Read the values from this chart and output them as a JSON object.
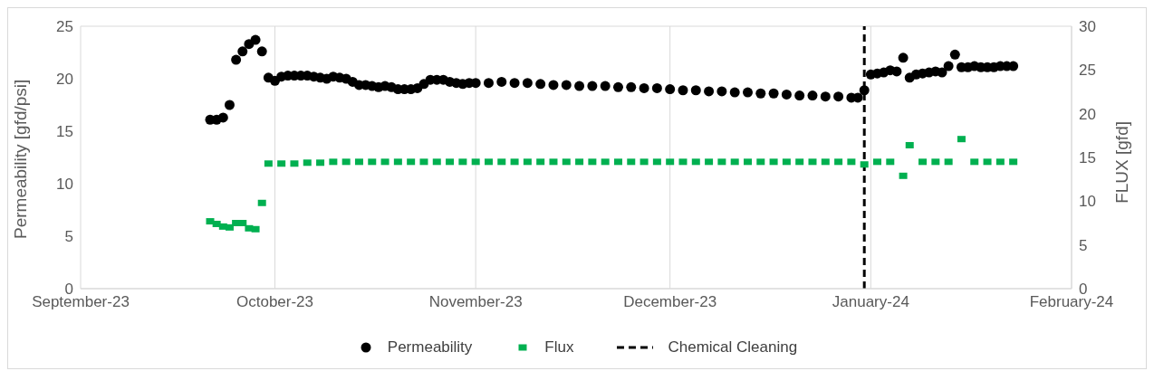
{
  "chart_data": {
    "type": "scatter",
    "ylabel": "Permeability [gfd/psi]",
    "y2label": "FLUX  [gfd]",
    "xlim": [
      "2023-09-01",
      "2024-02-01"
    ],
    "xticks": [
      {
        "value": "2023-09-01",
        "label": "September-23"
      },
      {
        "value": "2023-10-01",
        "label": "October-23"
      },
      {
        "value": "2023-11-01",
        "label": "November-23"
      },
      {
        "value": "2023-12-01",
        "label": "December-23"
      },
      {
        "value": "2024-01-01",
        "label": "January-24"
      },
      {
        "value": "2024-02-01",
        "label": "February-24"
      }
    ],
    "ylim": [
      0,
      25
    ],
    "yticks": [
      0,
      5,
      10,
      15,
      20,
      25
    ],
    "y2lim": [
      0,
      30
    ],
    "y2ticks": [
      0,
      5,
      10,
      15,
      20,
      25,
      30
    ],
    "grid": true,
    "legend": "bottom",
    "marker": "circle",
    "ref_lines": [
      {
        "axis": "x",
        "value": "2023-12-31",
        "label": "Chemical Cleaning",
        "color": "#000000",
        "line_style": "dashed"
      }
    ],
    "series": [
      {
        "name": "Permeability",
        "color": "#000000",
        "x": [
          "2023-09-21",
          "2023-09-22",
          "2023-09-23",
          "2023-09-24",
          "2023-09-25",
          "2023-09-26",
          "2023-09-27",
          "2023-09-28",
          "2023-09-29",
          "2023-09-30",
          "2023-10-01",
          "2023-10-02",
          "2023-10-03",
          "2023-10-04",
          "2023-10-05",
          "2023-10-06",
          "2023-10-07",
          "2023-10-08",
          "2023-10-09",
          "2023-10-10",
          "2023-10-11",
          "2023-10-12",
          "2023-10-13",
          "2023-10-14",
          "2023-10-15",
          "2023-10-16",
          "2023-10-17",
          "2023-10-18",
          "2023-10-19",
          "2023-10-20",
          "2023-10-21",
          "2023-10-22",
          "2023-10-23",
          "2023-10-24",
          "2023-10-25",
          "2023-10-26",
          "2023-10-27",
          "2023-10-28",
          "2023-10-29",
          "2023-10-30",
          "2023-10-31",
          "2023-11-01",
          "2023-11-03",
          "2023-11-05",
          "2023-11-07",
          "2023-11-09",
          "2023-11-11",
          "2023-11-13",
          "2023-11-15",
          "2023-11-17",
          "2023-11-19",
          "2023-11-21",
          "2023-11-23",
          "2023-11-25",
          "2023-11-27",
          "2023-11-29",
          "2023-12-01",
          "2023-12-03",
          "2023-12-05",
          "2023-12-07",
          "2023-12-09",
          "2023-12-11",
          "2023-12-13",
          "2023-12-15",
          "2023-12-17",
          "2023-12-19",
          "2023-12-21",
          "2023-12-23",
          "2023-12-25",
          "2023-12-27",
          "2023-12-29",
          "2023-12-30",
          "2023-12-31",
          "2024-01-01",
          "2024-01-02",
          "2024-01-03",
          "2024-01-04",
          "2024-01-05",
          "2024-01-06",
          "2024-01-07",
          "2024-01-08",
          "2024-01-09",
          "2024-01-10",
          "2024-01-11",
          "2024-01-12",
          "2024-01-13",
          "2024-01-14",
          "2024-01-15",
          "2024-01-16",
          "2024-01-17",
          "2024-01-18",
          "2024-01-19",
          "2024-01-20",
          "2024-01-21",
          "2024-01-22",
          "2024-01-23"
        ],
        "values": [
          16.1,
          16.1,
          16.3,
          17.5,
          21.8,
          22.6,
          23.3,
          23.7,
          22.6,
          20.1,
          19.8,
          20.2,
          20.3,
          20.3,
          20.3,
          20.3,
          20.2,
          20.1,
          20.0,
          20.2,
          20.1,
          20.0,
          19.7,
          19.4,
          19.4,
          19.3,
          19.2,
          19.3,
          19.2,
          19.0,
          19.0,
          19.0,
          19.1,
          19.5,
          19.9,
          19.9,
          19.9,
          19.7,
          19.6,
          19.5,
          19.6,
          19.6,
          19.6,
          19.7,
          19.6,
          19.6,
          19.5,
          19.4,
          19.4,
          19.3,
          19.3,
          19.3,
          19.2,
          19.2,
          19.1,
          19.1,
          19.0,
          18.9,
          18.9,
          18.8,
          18.8,
          18.7,
          18.7,
          18.6,
          18.6,
          18.5,
          18.4,
          18.4,
          18.3,
          18.3,
          18.2,
          18.2,
          18.9,
          20.4,
          20.5,
          20.6,
          20.8,
          20.7,
          22.0,
          20.1,
          20.4,
          20.5,
          20.6,
          20.7,
          20.6,
          21.2,
          22.3,
          21.1,
          21.1,
          21.2,
          21.1,
          21.1,
          21.1,
          21.2,
          21.2,
          21.2
        ]
      },
      {
        "name": "Flux",
        "color": "#00b050",
        "axis": "y2",
        "marker": "square",
        "x": [
          "2023-09-21",
          "2023-09-22",
          "2023-09-23",
          "2023-09-24",
          "2023-09-25",
          "2023-09-26",
          "2023-09-27",
          "2023-09-28",
          "2023-09-29",
          "2023-09-30",
          "2023-10-02",
          "2023-10-04",
          "2023-10-06",
          "2023-10-08",
          "2023-10-10",
          "2023-10-12",
          "2023-10-14",
          "2023-10-16",
          "2023-10-18",
          "2023-10-20",
          "2023-10-22",
          "2023-10-24",
          "2023-10-26",
          "2023-10-28",
          "2023-10-30",
          "2023-11-01",
          "2023-11-03",
          "2023-11-05",
          "2023-11-07",
          "2023-11-09",
          "2023-11-11",
          "2023-11-13",
          "2023-11-15",
          "2023-11-17",
          "2023-11-19",
          "2023-11-21",
          "2023-11-23",
          "2023-11-25",
          "2023-11-27",
          "2023-11-29",
          "2023-12-01",
          "2023-12-03",
          "2023-12-05",
          "2023-12-07",
          "2023-12-09",
          "2023-12-11",
          "2023-12-13",
          "2023-12-15",
          "2023-12-17",
          "2023-12-19",
          "2023-12-21",
          "2023-12-23",
          "2023-12-25",
          "2023-12-27",
          "2023-12-29",
          "2023-12-31",
          "2024-01-02",
          "2024-01-04",
          "2024-01-06",
          "2024-01-07",
          "2024-01-09",
          "2024-01-11",
          "2024-01-13",
          "2024-01-15",
          "2024-01-17",
          "2024-01-19",
          "2024-01-21",
          "2024-01-23"
        ],
        "values": [
          7.7,
          7.4,
          7.1,
          7.0,
          7.5,
          7.5,
          6.9,
          6.8,
          9.8,
          14.3,
          14.3,
          14.3,
          14.4,
          14.4,
          14.5,
          14.5,
          14.5,
          14.5,
          14.5,
          14.5,
          14.5,
          14.5,
          14.5,
          14.5,
          14.5,
          14.5,
          14.5,
          14.5,
          14.5,
          14.5,
          14.5,
          14.5,
          14.5,
          14.5,
          14.5,
          14.5,
          14.5,
          14.5,
          14.5,
          14.5,
          14.5,
          14.5,
          14.5,
          14.5,
          14.5,
          14.5,
          14.5,
          14.5,
          14.5,
          14.5,
          14.5,
          14.5,
          14.5,
          14.5,
          14.5,
          14.2,
          14.5,
          14.5,
          12.9,
          16.4,
          14.5,
          14.5,
          14.5,
          17.1,
          14.5,
          14.5,
          14.5,
          14.5
        ]
      }
    ]
  }
}
